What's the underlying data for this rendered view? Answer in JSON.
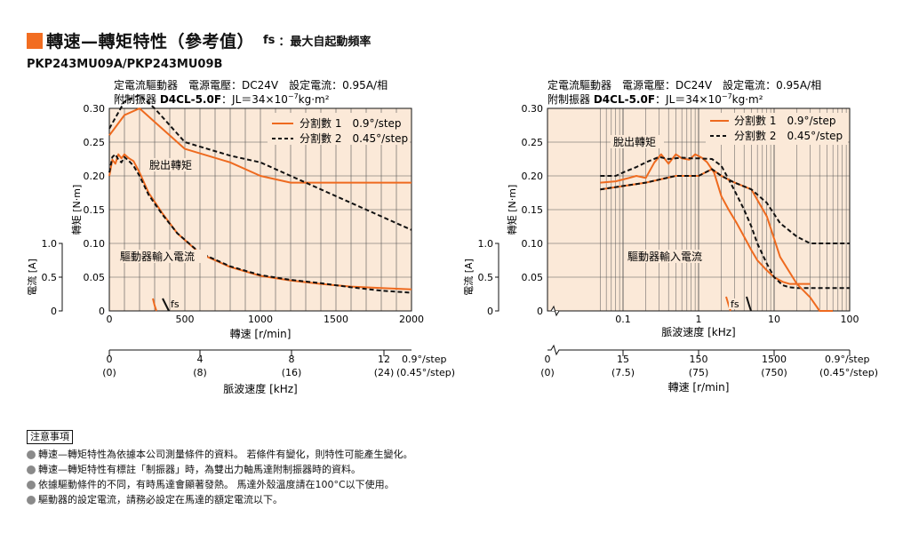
{
  "page": {
    "title": "轉速—轉矩特性（參考值）",
    "fs_symbol": "fs",
    "fs_label": "：最大自起動頻率",
    "model": "PKP243MU09A/PKP243MU09B"
  },
  "colors": {
    "accent": "#f26d21",
    "plot_bg": "#fbe9d8",
    "series1": "#ee6a1f",
    "series2": "#111111"
  },
  "charts": [
    {
      "header1": "定電流驅動器　電源電壓：DC24V　設定電流：0.95A/相",
      "header2_a": "附制振器 ",
      "header2_b": "D4CL-5.0F",
      "header2_c": "：JL＝34×10",
      "header2_sup": "−7",
      "header2_d": "kg·m²",
      "torque_label": "轉矩 [N·m]",
      "current_label": "電流 [A]",
      "torque_ticks": [
        "0.30",
        "0.25",
        "0.20",
        "0.15",
        "0.10",
        "0.05",
        "0"
      ],
      "current_ticks": [
        "1.0",
        "0.5",
        "0"
      ],
      "x_ticks": [
        "0",
        "500",
        "1000",
        "1500",
        "2000"
      ],
      "x_label": "轉速 [r/min]",
      "legend": [
        "分割數 1　0.9°/step",
        "分割數 2　0.45°/step"
      ],
      "annot_pullout": "脫出轉矩",
      "annot_current": "驅動器輸入電流",
      "annot_fs": "fs",
      "pulse_ticks_top": [
        "0",
        "4",
        "8",
        "12"
      ],
      "pulse_ticks_bot": [
        "(0)",
        "(8)",
        "(16)",
        "(24)"
      ],
      "pulse_step1": "0.9°/step",
      "pulse_step2": "(0.45°/step)",
      "pulse_label": "脈波速度 [kHz]"
    },
    {
      "header1": "定電流驅動器　電源電壓：DC24V　設定電流：0.95A/相",
      "header2_a": "附制振器 ",
      "header2_b": "D4CL-5.0F",
      "header2_c": "：JL＝34×10",
      "header2_sup": "−7",
      "header2_d": "kg·m²",
      "torque_label": "轉矩 [N·m]",
      "current_label": "電流 [A]",
      "torque_ticks": [
        "0.30",
        "0.25",
        "0.20",
        "0.15",
        "0.10",
        "0.05",
        "0"
      ],
      "current_ticks": [
        "1.0",
        "0.5",
        "0"
      ],
      "x_ticks": [
        "0.1",
        "1",
        "10",
        "100"
      ],
      "x_label": "脈波速度 [kHz]",
      "legend": [
        "分割數 1　0.9°/step",
        "分割數 2　0.45°/step"
      ],
      "annot_pullout": "脫出轉矩",
      "annot_current": "驅動器輸入電流",
      "annot_fs": "fs",
      "speed_ticks_top": [
        "0",
        "15",
        "150",
        "1500"
      ],
      "speed_ticks_bot": [
        "(0)",
        "(7.5)",
        "(75)",
        "(750)"
      ],
      "speed_step1": "0.9°/step",
      "speed_step2": "(0.45°/step)",
      "speed_label": "轉速 [r/min]"
    }
  ],
  "chart_data": [
    {
      "type": "line",
      "x_unit": "r/min",
      "xlim": [
        0,
        2000
      ],
      "ylim": [
        0,
        0.3
      ],
      "y2lim": [
        0,
        1.0
      ],
      "series": [
        {
          "name": "分割數 1　0.9°/step",
          "kind": "pullout_torque",
          "x": [
            0,
            20,
            40,
            60,
            80,
            100,
            130,
            160,
            200,
            260,
            350,
            450,
            600,
            800,
            1000,
            1200,
            1400,
            1600,
            1800,
            2000
          ],
          "y": [
            0.2,
            0.224,
            0.218,
            0.232,
            0.226,
            0.232,
            0.226,
            0.222,
            0.205,
            0.175,
            0.145,
            0.115,
            0.085,
            0.065,
            0.052,
            0.045,
            0.04,
            0.036,
            0.034,
            0.032
          ]
        },
        {
          "name": "分割數 2　0.45°/step",
          "kind": "pullout_torque",
          "x": [
            0,
            20,
            40,
            60,
            80,
            100,
            130,
            160,
            200,
            260,
            350,
            450,
            600,
            800,
            1000,
            1200,
            1400,
            1600,
            1800,
            2000
          ],
          "y": [
            0.205,
            0.228,
            0.232,
            0.224,
            0.22,
            0.228,
            0.222,
            0.215,
            0.2,
            0.172,
            0.143,
            0.115,
            0.086,
            0.066,
            0.053,
            0.046,
            0.041,
            0.035,
            0.03,
            0.027
          ]
        },
        {
          "name": "分割數 1　0.9°/step",
          "kind": "input_current",
          "x": [
            0,
            100,
            200,
            300,
            500,
            800,
            1000,
            1200,
            1400,
            1600,
            1800,
            2000
          ],
          "y": [
            0.26,
            0.29,
            0.3,
            0.28,
            0.24,
            0.22,
            0.2,
            0.19,
            0.19,
            0.19,
            0.19,
            0.19
          ]
        },
        {
          "name": "分割數 2　0.45°/step",
          "kind": "input_current",
          "x": [
            0,
            100,
            200,
            300,
            500,
            800,
            1000,
            1200,
            1400,
            1600,
            1800,
            2000
          ],
          "y": [
            0.27,
            0.31,
            0.32,
            0.3,
            0.25,
            0.23,
            0.22,
            0.2,
            0.18,
            0.16,
            0.14,
            0.12
          ]
        }
      ]
    },
    {
      "type": "line",
      "x_unit": "kHz",
      "x_scale": "log",
      "xlim": [
        0.01,
        100
      ],
      "ylim": [
        0,
        0.3
      ],
      "y2lim": [
        0,
        1.0
      ],
      "series": [
        {
          "name": "分割數 1　0.9°/step",
          "kind": "pullout_torque",
          "x": [
            0.05,
            0.08,
            0.12,
            0.15,
            0.2,
            0.26,
            0.32,
            0.4,
            0.5,
            0.6,
            0.75,
            0.9,
            1.1,
            1.3,
            1.6,
            2,
            2.5,
            3.2,
            4,
            5,
            6,
            8,
            10,
            13,
            16,
            20,
            25,
            30
          ],
          "y": [
            0.19,
            0.192,
            0.197,
            0.2,
            0.197,
            0.22,
            0.232,
            0.218,
            0.232,
            0.226,
            0.224,
            0.232,
            0.227,
            0.22,
            0.205,
            0.17,
            0.15,
            0.13,
            0.11,
            0.09,
            0.075,
            0.06,
            0.05,
            0.043,
            0.04,
            0.04,
            0.04,
            0.04
          ]
        },
        {
          "name": "分割數 2　0.45°/step",
          "kind": "pullout_torque",
          "x": [
            0.05,
            0.08,
            0.1,
            0.15,
            0.2,
            0.3,
            0.4,
            0.6,
            0.8,
            1,
            1.5,
            2,
            2.5,
            3,
            4,
            5,
            6,
            8,
            10,
            13,
            16,
            20,
            25,
            30,
            40,
            60,
            100
          ],
          "y": [
            0.2,
            0.2,
            0.205,
            0.213,
            0.22,
            0.228,
            0.225,
            0.227,
            0.226,
            0.226,
            0.225,
            0.215,
            0.195,
            0.178,
            0.15,
            0.125,
            0.1,
            0.07,
            0.05,
            0.038,
            0.035,
            0.034,
            0.034,
            0.034,
            0.034,
            0.034,
            0.034
          ]
        },
        {
          "name": "分割數 1　0.9°/step",
          "kind": "input_current",
          "x": [
            0.05,
            0.2,
            0.5,
            1,
            1.5,
            2,
            3,
            5,
            8,
            12,
            20,
            30,
            40,
            60
          ],
          "y": [
            0.18,
            0.19,
            0.2,
            0.2,
            0.21,
            0.2,
            0.19,
            0.18,
            0.14,
            0.08,
            0.04,
            0.02,
            0.0,
            0.0
          ]
        },
        {
          "name": "分割數 2　0.45°/step",
          "kind": "input_current",
          "x": [
            0.05,
            0.2,
            0.5,
            1,
            1.5,
            2,
            3,
            5,
            8,
            12,
            20,
            30,
            40,
            60,
            80,
            100
          ],
          "y": [
            0.18,
            0.19,
            0.2,
            0.2,
            0.21,
            0.2,
            0.19,
            0.18,
            0.16,
            0.13,
            0.11,
            0.1,
            0.1,
            0.1,
            0.1,
            0.1
          ]
        }
      ]
    }
  ],
  "notes": {
    "title": "注意事項",
    "items": [
      "轉速—轉矩特性為依據本公司測量條件的資料。 若條件有變化，則特性可能產生變化。",
      "轉速—轉矩特性有標註「制振器」時，為雙出力軸馬達附制振器時的資料。",
      "依據驅動條件的不同，有時馬達會顯著發熱。 馬達外殼溫度請在100°C以下使用。",
      "驅動器的設定電流，請務必設定在馬達的額定電流以下。"
    ]
  }
}
